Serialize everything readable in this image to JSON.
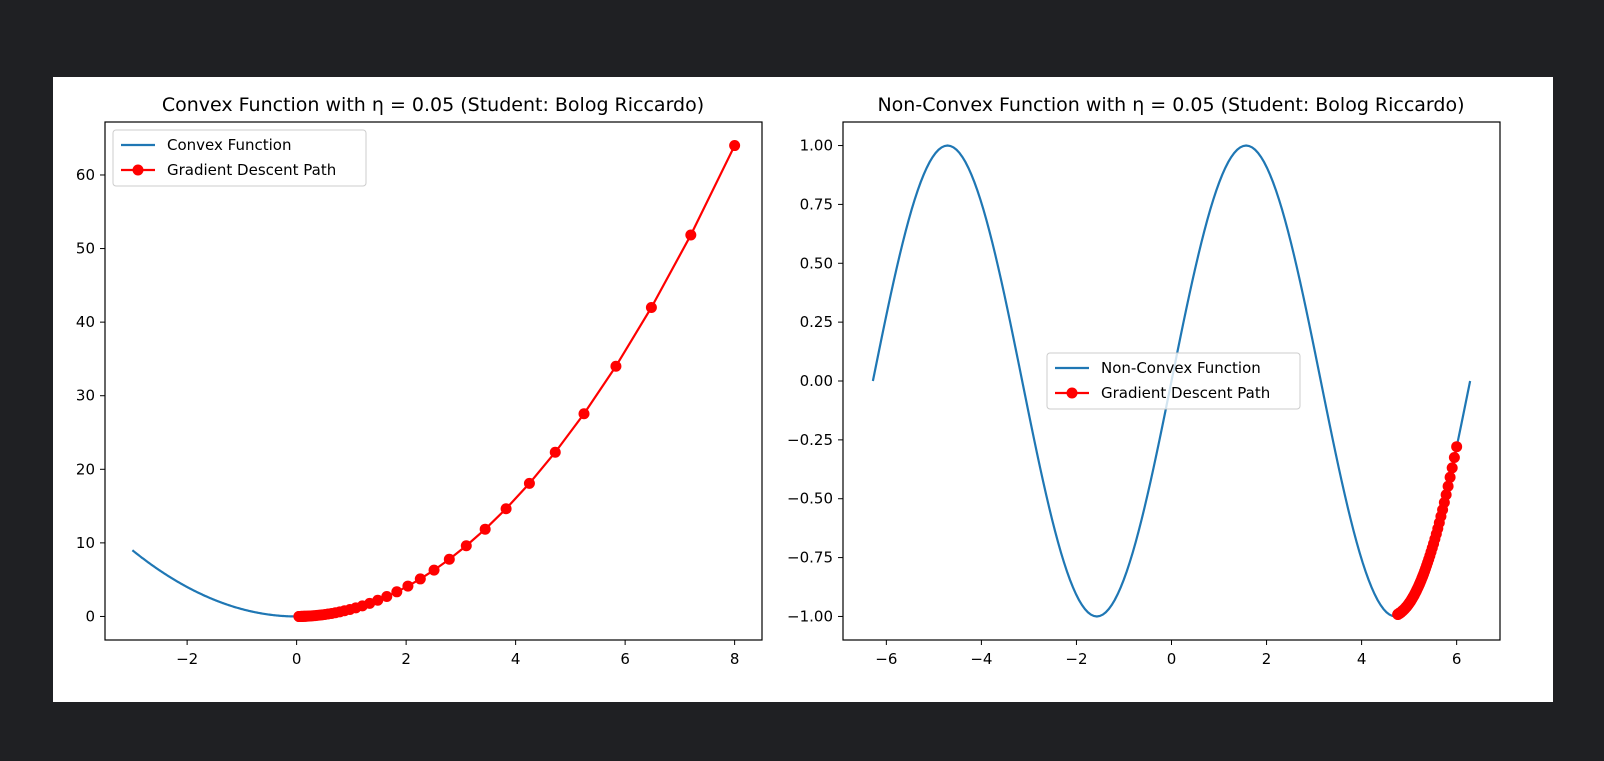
{
  "colors": {
    "viewer_background": "#1f2023",
    "figure_background": "#ffffff",
    "function_line": "#1f77b4",
    "descent_path": "#ff0000"
  },
  "chart_data": [
    {
      "type": "line",
      "title": "Convex Function with η = 0.05 (Student: Bolog Riccardo)",
      "xlabel": "",
      "ylabel": "",
      "xlim": [
        -3.5,
        8.5
      ],
      "ylim": [
        -3.2,
        67.2
      ],
      "xticks": [
        -2,
        0,
        2,
        4,
        6,
        8
      ],
      "xtick_labels": [
        "−2",
        "0",
        "2",
        "4",
        "6",
        "8"
      ],
      "yticks": [
        0,
        10,
        20,
        30,
        40,
        50,
        60
      ],
      "ytick_labels": [
        "0",
        "10",
        "20",
        "30",
        "40",
        "50",
        "60"
      ],
      "grid": false,
      "legend_position": "upper left",
      "function": {
        "name": "Convex Function",
        "formula": "x^2",
        "x_range": [
          -3,
          0
        ]
      },
      "series": [
        {
          "name": "Convex Function",
          "style": "line",
          "x": [
            -3,
            -2.5,
            -2,
            -1.5,
            -1,
            -0.5,
            0
          ],
          "y": [
            9,
            6.25,
            4,
            2.25,
            1,
            0.25,
            0
          ]
        },
        {
          "name": "Gradient Descent Path",
          "style": "line-markers",
          "x": [
            8,
            7.2,
            6.48,
            5.832,
            5.249,
            4.724,
            4.252,
            3.826,
            3.444,
            3.099,
            2.789,
            2.51,
            2.259,
            2.033,
            1.83,
            1.647,
            1.482,
            1.334,
            1.201,
            1.081,
            0.973,
            0.875,
            0.788,
            0.709,
            0.638,
            0.574,
            0.517,
            0.465,
            0.419,
            0.377,
            0.339,
            0.305,
            0.275,
            0.247,
            0.223,
            0.2,
            0.18,
            0.162,
            0.146,
            0.131,
            0.118,
            0.106,
            0.096,
            0.086,
            0.078,
            0.07,
            0.063,
            0.057,
            0.051,
            0.046,
            0.041
          ],
          "y": [
            64,
            51.84,
            41.99,
            34.01,
            27.55,
            22.32,
            18.08,
            14.64,
            11.86,
            9.61,
            7.78,
            6.3,
            5.1,
            4.13,
            3.35,
            2.71,
            2.2,
            1.78,
            1.44,
            1.17,
            0.95,
            0.77,
            0.62,
            0.5,
            0.41,
            0.33,
            0.27,
            0.22,
            0.18,
            0.14,
            0.12,
            0.09,
            0.08,
            0.06,
            0.05,
            0.04,
            0.03,
            0.03,
            0.02,
            0.02,
            0.01,
            0.01,
            0.01,
            0.01,
            0.01,
            0,
            0,
            0,
            0,
            0,
            0
          ]
        }
      ]
    },
    {
      "type": "line",
      "title": "Non-Convex Function with η = 0.05 (Student: Bolog Riccardo)",
      "xlabel": "",
      "ylabel": "",
      "xlim": [
        -6.912,
        6.912
      ],
      "ylim": [
        -1.1,
        1.1
      ],
      "xticks": [
        -6,
        -4,
        -2,
        0,
        2,
        4,
        6
      ],
      "xtick_labels": [
        "−6",
        "−4",
        "−2",
        "0",
        "2",
        "4",
        "6"
      ],
      "yticks": [
        -1,
        -0.75,
        -0.5,
        -0.25,
        0,
        0.25,
        0.5,
        0.75,
        1
      ],
      "ytick_labels": [
        "−1.00",
        "−0.75",
        "−0.50",
        "−0.25",
        "0.00",
        "0.25",
        "0.50",
        "0.75",
        "1.00"
      ],
      "grid": false,
      "legend_position": "center",
      "function": {
        "name": "Non-Convex Function",
        "formula": "sin(x)",
        "x_range": [
          -6.2832,
          6.2832
        ]
      },
      "series": [
        {
          "name": "Non-Convex Function",
          "style": "line",
          "x": [
            -6.283,
            -5.498,
            -4.712,
            -3.927,
            -3.142,
            -2.356,
            -1.571,
            -0.785,
            0,
            0.785,
            1.571,
            2.356,
            3.142,
            3.927,
            4.712,
            5.498,
            6.283
          ],
          "y": [
            0,
            0.707,
            1,
            0.707,
            0,
            -0.707,
            -1,
            -0.707,
            0,
            0.707,
            1,
            0.707,
            0,
            -0.707,
            -1,
            -0.707,
            0
          ]
        },
        {
          "name": "Gradient Descent Path",
          "style": "line-markers",
          "x": [
            6,
            5.952,
            5.906,
            5.862,
            5.82,
            5.779,
            5.741,
            5.704,
            5.669,
            5.635,
            5.603,
            5.572,
            5.542,
            5.514,
            5.487,
            5.461,
            5.436,
            5.412,
            5.389,
            5.367,
            5.345,
            5.325,
            5.305,
            5.286,
            5.268,
            5.251,
            5.234,
            5.217,
            5.201,
            5.186,
            5.171,
            5.157,
            5.143,
            5.13,
            5.117,
            5.105,
            5.093,
            5.081,
            5.07,
            5.059,
            5.049,
            5.039,
            5.029,
            5.019,
            5.01,
            5.001,
            4.992,
            4.984,
            4.976,
            4.968,
            4.96,
            4.953,
            4.946,
            4.939,
            4.932,
            4.925,
            4.919,
            4.913,
            4.907,
            4.901,
            4.895,
            4.889,
            4.884,
            4.879,
            4.874,
            4.869,
            4.864,
            4.859,
            4.855,
            4.85,
            4.846,
            4.842,
            4.838,
            4.834,
            4.83,
            4.826,
            4.822,
            4.819,
            4.815,
            4.812,
            4.809,
            4.806,
            4.802,
            4.8,
            4.797,
            4.794,
            4.791,
            4.788,
            4.786,
            4.783,
            4.781,
            4.779,
            4.776,
            4.774,
            4.772,
            4.77,
            4.768,
            4.766,
            4.764,
            4.762,
            4.76
          ],
          "y": [
            -0.279,
            -0.325,
            -0.369,
            -0.409,
            -0.447,
            -0.483,
            -0.516,
            -0.547,
            -0.575,
            -0.602,
            -0.627,
            -0.65,
            -0.671,
            -0.691,
            -0.709,
            -0.726,
            -0.742,
            -0.757,
            -0.771,
            -0.784,
            -0.797,
            -0.808,
            -0.819,
            -0.829,
            -0.838,
            -0.847,
            -0.855,
            -0.863,
            -0.87,
            -0.877,
            -0.883,
            -0.889,
            -0.895,
            -0.9,
            -0.905,
            -0.91,
            -0.914,
            -0.918,
            -0.922,
            -0.926,
            -0.929,
            -0.933,
            -0.936,
            -0.939,
            -0.941,
            -0.944,
            -0.946,
            -0.949,
            -0.951,
            -0.953,
            -0.955,
            -0.957,
            -0.959,
            -0.96,
            -0.962,
            -0.963,
            -0.965,
            -0.966,
            -0.968,
            -0.969,
            -0.97,
            -0.971,
            -0.972,
            -0.973,
            -0.974,
            -0.975,
            -0.976,
            -0.977,
            -0.978,
            -0.978,
            -0.979,
            -0.98,
            -0.981,
            -0.981,
            -0.982,
            -0.982,
            -0.983,
            -0.984,
            -0.984,
            -0.985,
            -0.985,
            -0.985,
            -0.986,
            -0.986,
            -0.987,
            -0.987,
            -0.987,
            -0.988,
            -0.988,
            -0.988,
            -0.989,
            -0.989,
            -0.989,
            -0.99,
            -0.99,
            -0.99,
            -0.99,
            -0.991,
            -0.991,
            -0.991,
            -0.991
          ]
        }
      ]
    }
  ]
}
